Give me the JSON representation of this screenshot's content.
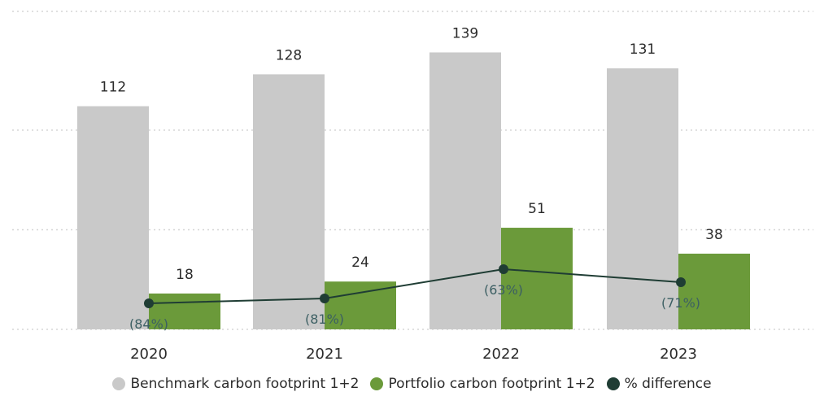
{
  "chart_data": {
    "type": "bar",
    "title": "",
    "xlabel": "",
    "ylabel": "",
    "categories": [
      "2020",
      "2021",
      "2022",
      "2023"
    ],
    "ylim": [
      0,
      150
    ],
    "grid": true,
    "legend_placement": "bottom-center",
    "series": [
      {
        "name": "Benchmark carbon footprint 1+2",
        "kind": "bar",
        "color": "#c9c9c9",
        "values": [
          112,
          128,
          139,
          131
        ],
        "labels": [
          "112",
          "128",
          "139",
          "131"
        ]
      },
      {
        "name": "Portfolio carbon footprint 1+2",
        "kind": "bar",
        "color": "#6b9a3a",
        "values": [
          18,
          24,
          51,
          38
        ],
        "labels": [
          "18",
          "24",
          "51",
          "38"
        ]
      },
      {
        "name": "% difference",
        "kind": "line",
        "color": "#1f3d34",
        "values": [
          -84,
          -81,
          -63,
          -71
        ],
        "labels": [
          "(84%)",
          "(81%)",
          "(63%)",
          "(71%)"
        ]
      }
    ]
  }
}
